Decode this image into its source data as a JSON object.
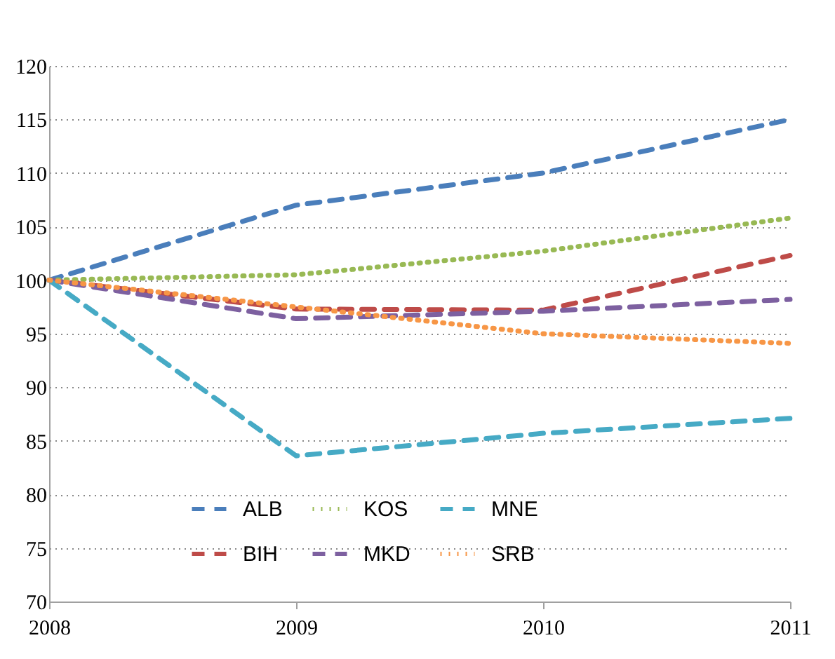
{
  "chart_data": {
    "type": "line",
    "x": [
      2008,
      2009,
      2010,
      2011
    ],
    "xlim": [
      2008,
      2011
    ],
    "xticks": [
      2008,
      2009,
      2010,
      2011
    ],
    "ylim": [
      70,
      120
    ],
    "yticks": [
      70,
      75,
      80,
      85,
      90,
      95,
      100,
      105,
      110,
      115,
      120
    ],
    "grid": "y",
    "legend": "bottom",
    "marker": "none",
    "series": [
      {
        "name": "ALB",
        "color": "#4a7ebb",
        "line_style": "dashed",
        "values": [
          100,
          107,
          110,
          115
        ]
      },
      {
        "name": "BIH",
        "color": "#be4b48",
        "line_style": "dashed",
        "values": [
          100,
          97.3,
          97.2,
          102.3
        ]
      },
      {
        "name": "KOS",
        "color": "#98b954",
        "line_style": "dotted",
        "values": [
          100,
          100.5,
          102.7,
          105.8
        ]
      },
      {
        "name": "MKD",
        "color": "#7d60a0",
        "line_style": "dashed",
        "values": [
          100,
          96.4,
          97.1,
          98.2
        ]
      },
      {
        "name": "MNE",
        "color": "#46aac5",
        "line_style": "dashed",
        "values": [
          100,
          83.6,
          85.7,
          87.1
        ]
      },
      {
        "name": "SRB",
        "color": "#f79646",
        "line_style": "dotted",
        "values": [
          100,
          97.5,
          95.0,
          94.1
        ]
      }
    ]
  }
}
